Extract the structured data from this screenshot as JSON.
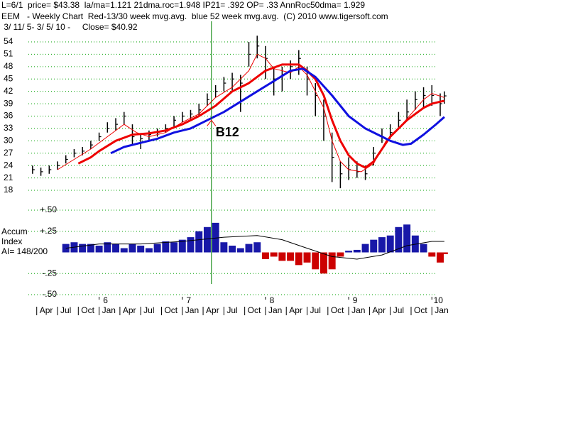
{
  "header": [
    "L=6/1  price= $43.38  la/ma=1.121 21dma.roc=1.948 IP21= .392 OP= .33 AnnRoc50dma= 1.929",
    "EEM   - Weekly Chart  Red-13/30 week mvg.avg.  blue 52 week mvg.avg.  (C) 2010 www.tigersoft.com",
    " 3/ 11/ 5- 3/ 5/ 10 -     Close= $40.92"
  ],
  "chart_data": [
    {
      "type": "ohlc",
      "x": [
        2005.2,
        2005.3,
        2005.4,
        2005.5,
        2005.6,
        2005.7,
        2005.8,
        2005.9,
        2006.0,
        2006.1,
        2006.2,
        2006.3,
        2006.4,
        2006.5,
        2006.6,
        2006.7,
        2006.8,
        2006.9,
        2007.0,
        2007.1,
        2007.2,
        2007.3,
        2007.4,
        2007.5,
        2007.6,
        2007.7,
        2007.8,
        2007.9,
        2008.0,
        2008.1,
        2008.2,
        2008.3,
        2008.4,
        2008.5,
        2008.6,
        2008.7,
        2008.8,
        2008.9,
        2009.0,
        2009.1,
        2009.2,
        2009.3,
        2009.4,
        2009.5,
        2009.6,
        2009.7,
        2009.8,
        2009.9,
        2010.0,
        2010.1,
        2010.15
      ],
      "high": [
        24,
        23.5,
        24,
        25,
        26.5,
        28,
        28.5,
        30,
        32,
        34.5,
        35.5,
        37,
        34,
        31.5,
        32.5,
        33,
        34,
        36,
        37,
        37.5,
        39,
        41.5,
        43.5,
        45.5,
        46.5,
        46,
        54,
        55.5,
        53,
        48,
        48,
        49.5,
        52,
        48,
        44,
        40,
        32,
        25,
        26,
        25,
        24,
        28.5,
        33,
        34,
        37,
        40,
        42,
        43,
        43.5,
        41.5,
        42
      ],
      "low": [
        22,
        21.5,
        22,
        23,
        24.5,
        26,
        26.5,
        28,
        30,
        32,
        32.5,
        34,
        29,
        28,
        30,
        31,
        32,
        33.5,
        34.5,
        35,
        36,
        38.5,
        40.5,
        42,
        42,
        37,
        48,
        50,
        45,
        41,
        42,
        45,
        46,
        41,
        36,
        30,
        20,
        18.5,
        20.5,
        21,
        20.5,
        24,
        29.5,
        30.5,
        33,
        35,
        37.5,
        38,
        38.5,
        36,
        39
      ],
      "close": [
        23,
        22.5,
        23,
        24,
        25.5,
        27,
        27.5,
        29,
        31,
        33,
        34,
        36,
        31,
        30.5,
        31.5,
        32,
        33,
        35,
        36,
        36.5,
        37.5,
        40,
        42,
        44,
        45,
        44,
        51,
        53,
        50,
        45,
        46,
        48,
        50,
        45,
        41,
        36,
        26,
        22,
        23,
        22.5,
        22,
        27,
        31,
        32,
        35,
        37,
        40,
        41,
        41,
        39,
        40.9
      ],
      "bar_color": "#000000",
      "lines": [
        {
          "color": "#ee0000",
          "width": 1,
          "x": [
            2005.5,
            2005.7,
            2005.9,
            2006.1,
            2006.3,
            2006.45,
            2006.6,
            2006.8,
            2007.0,
            2007.2,
            2007.4,
            2007.6,
            2007.8,
            2007.9,
            2008.0,
            2008.1,
            2008.3,
            2008.4,
            2008.5,
            2008.6,
            2008.7,
            2008.8,
            2008.9,
            2009.0,
            2009.15,
            2009.3,
            2009.45,
            2009.6,
            2009.75,
            2009.9,
            2010.0,
            2010.15
          ],
          "values": [
            23,
            25.5,
            28,
            31,
            34,
            32,
            31,
            32,
            34.5,
            36.5,
            40.5,
            43,
            47,
            51,
            50,
            47.5,
            46.5,
            48,
            46,
            42,
            38,
            30,
            25,
            23,
            22.5,
            24.5,
            30,
            33,
            36.5,
            40,
            41.5,
            40.5
          ]
        },
        {
          "color": "#ee0000",
          "width": 3,
          "x": [
            2005.75,
            2005.9,
            2006.0,
            2006.2,
            2006.4,
            2006.6,
            2006.8,
            2007.0,
            2007.2,
            2007.4,
            2007.6,
            2007.8,
            2008.0,
            2008.2,
            2008.4,
            2008.5,
            2008.6,
            2008.7,
            2008.8,
            2008.9,
            2009.0,
            2009.1,
            2009.2,
            2009.3,
            2009.4,
            2009.5,
            2009.6,
            2009.7,
            2009.8,
            2009.9,
            2010.0,
            2010.1,
            2010.15
          ],
          "values": [
            24.5,
            26,
            27.5,
            30,
            31.5,
            31.8,
            32.5,
            34,
            36,
            38.5,
            42,
            44,
            47,
            48.5,
            48.5,
            47,
            45,
            41,
            35,
            30,
            26.5,
            24.5,
            23.5,
            25,
            28,
            31,
            33,
            35,
            36.5,
            38,
            39,
            39.5,
            39.7
          ]
        },
        {
          "color": "#1010e0",
          "width": 3,
          "x": [
            2006.14,
            2006.3,
            2006.5,
            2006.7,
            2006.9,
            2007.1,
            2007.3,
            2007.5,
            2007.7,
            2007.9,
            2008.1,
            2008.3,
            2008.45,
            2008.6,
            2008.8,
            2009.0,
            2009.2,
            2009.4,
            2009.5,
            2009.65,
            2009.75,
            2009.9,
            2010.05,
            2010.15
          ],
          "values": [
            27,
            28.5,
            29.5,
            30.5,
            32,
            33,
            35,
            37,
            39.5,
            42,
            44.5,
            47,
            47.5,
            45.5,
            41,
            36,
            33,
            31,
            30,
            29,
            29.3,
            31.5,
            34,
            35.8
          ]
        }
      ],
      "xlim": [
        2005.15,
        2010.1
      ],
      "ylim": [
        18,
        55.5
      ],
      "yticks": [
        54,
        51,
        48,
        45,
        42,
        39,
        36,
        33,
        30,
        27,
        24,
        21,
        18
      ],
      "grid": true,
      "grid_color": "#00a000",
      "signal": {
        "x": 2007.35,
        "price": 35,
        "text": "B12",
        "line_color": "#008000",
        "arrow_color": "#ee0000"
      }
    },
    {
      "type": "bar",
      "labels": [
        "Accum",
        "Index",
        "AI= 148/200"
      ],
      "x": [
        2005.6,
        2005.7,
        2005.8,
        2005.9,
        2006.0,
        2006.1,
        2006.2,
        2006.3,
        2006.4,
        2006.5,
        2006.6,
        2006.7,
        2006.8,
        2006.9,
        2007.0,
        2007.1,
        2007.2,
        2007.3,
        2007.4,
        2007.5,
        2007.6,
        2007.7,
        2007.8,
        2007.9,
        2008.0,
        2008.1,
        2008.2,
        2008.3,
        2008.4,
        2008.5,
        2008.6,
        2008.7,
        2008.8,
        2008.9,
        2009.0,
        2009.1,
        2009.2,
        2009.3,
        2009.4,
        2009.5,
        2009.6,
        2009.7,
        2009.8,
        2009.9,
        2010.0,
        2010.1,
        2010.15
      ],
      "values": [
        0.1,
        0.12,
        0.1,
        0.1,
        0.08,
        0.12,
        0.1,
        0.05,
        0.1,
        0.08,
        0.05,
        0.1,
        0.13,
        0.12,
        0.15,
        0.18,
        0.25,
        0.3,
        0.35,
        0.12,
        0.08,
        0.05,
        0.1,
        0.12,
        -0.08,
        -0.05,
        -0.1,
        -0.1,
        -0.15,
        -0.12,
        -0.2,
        -0.25,
        -0.2,
        -0.05,
        0.02,
        0.03,
        0.1,
        0.15,
        0.18,
        0.2,
        0.3,
        0.33,
        0.2,
        0.1,
        -0.05,
        -0.12,
        -0.02
      ],
      "positive_color": "#1818a8",
      "negative_color": "#cc0000",
      "line": {
        "color": "#000000",
        "x": [
          2005.6,
          2006.0,
          2006.5,
          2007.0,
          2007.5,
          2007.9,
          2008.2,
          2008.5,
          2008.8,
          2009.1,
          2009.4,
          2009.7,
          2010.0,
          2010.15
        ],
        "values": [
          0.05,
          0.1,
          0.1,
          0.13,
          0.18,
          0.2,
          0.15,
          0.05,
          -0.05,
          -0.08,
          -0.03,
          0.08,
          0.13,
          0.13
        ]
      },
      "xlim": [
        2005.15,
        2010.1
      ],
      "ylim": [
        -0.5,
        0.5
      ],
      "yticks": [
        {
          "value": 0.5,
          "label": "+.50"
        },
        {
          "value": 0.25,
          "label": "+.25"
        },
        {
          "value": -0.25,
          "label": "-.25"
        },
        {
          "value": -0.5,
          "label": "-.50"
        }
      ],
      "grid": true,
      "grid_color": "#00a000",
      "xticks": [
        {
          "value": 2005.25,
          "label": "Apr"
        },
        {
          "value": 2005.5,
          "label": "Jul"
        },
        {
          "value": 2005.75,
          "label": "Oct"
        },
        {
          "value": 2006.0,
          "label": "Jan"
        },
        {
          "value": 2006.25,
          "label": "Apr"
        },
        {
          "value": 2006.5,
          "label": "Jul"
        },
        {
          "value": 2006.75,
          "label": "Oct"
        },
        {
          "value": 2007.0,
          "label": "Jan"
        },
        {
          "value": 2007.25,
          "label": "Apr"
        },
        {
          "value": 2007.5,
          "label": "Jul"
        },
        {
          "value": 2007.75,
          "label": "Oct"
        },
        {
          "value": 2008.0,
          "label": "Jan"
        },
        {
          "value": 2008.25,
          "label": "Apr"
        },
        {
          "value": 2008.5,
          "label": "Jul"
        },
        {
          "value": 2008.75,
          "label": "Oct"
        },
        {
          "value": 2009.0,
          "label": "Jan"
        },
        {
          "value": 2009.25,
          "label": "Apr"
        },
        {
          "value": 2009.5,
          "label": "Jul"
        },
        {
          "value": 2009.75,
          "label": "Oct"
        },
        {
          "value": 2010.0,
          "label": "Jan"
        }
      ],
      "year_ticks": [
        {
          "value": 2006,
          "label": "6"
        },
        {
          "value": 2007,
          "label": "7"
        },
        {
          "value": 2008,
          "label": "8"
        },
        {
          "value": 2009,
          "label": "9"
        },
        {
          "value": 2010,
          "label": "10"
        }
      ]
    }
  ]
}
